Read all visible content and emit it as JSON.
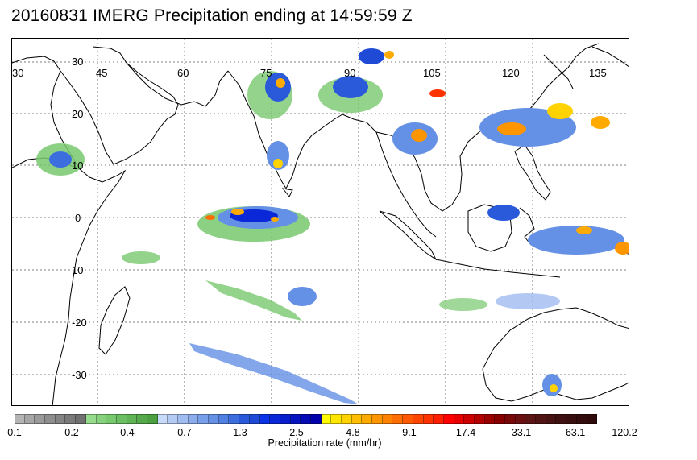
{
  "title": "20160831 IMERG Precipitation ending at 14:59:59 Z",
  "longitude_labels": [
    "30",
    "45",
    "60",
    "75",
    "90",
    "105",
    "120",
    "135"
  ],
  "latitude_labels": [
    "30",
    "20",
    "10",
    "0",
    "10",
    "-20",
    "-30"
  ],
  "colorbar": {
    "title": "Precipitation rate (mm/hr)",
    "ticks": [
      "0.1",
      "0.2",
      "0.4",
      "0.7",
      "1.3",
      "2.5",
      "4.8",
      "9.1",
      "17.4",
      "33.1",
      "63.1",
      "120.2"
    ],
    "colors": [
      "#b4b4b4",
      "#a6a6a6",
      "#9a9a9a",
      "#8e8e8e",
      "#848484",
      "#7a7a7a",
      "#707070",
      "#96dc8c",
      "#86d27c",
      "#78c86e",
      "#6cbe62",
      "#60b456",
      "#56aa4c",
      "#4ca042",
      "#c8dcfa",
      "#b4ccf4",
      "#a0bcf0",
      "#8cacec",
      "#78a0ea",
      "#6490e6",
      "#5080e2",
      "#3c6ede",
      "#2a5ada",
      "#1e4ad6",
      "#0a32e6",
      "#0a28d8",
      "#081ecc",
      "#0614c0",
      "#040ab4",
      "#0000aa",
      "#fffa00",
      "#ffe600",
      "#ffd200",
      "#ffbe00",
      "#ffaa00",
      "#ff9600",
      "#ff8200",
      "#ff6e00",
      "#ff5a00",
      "#ff4600",
      "#ff3200",
      "#ff1e00",
      "#ff0000",
      "#e60000",
      "#cc0000",
      "#b30000",
      "#9a0000",
      "#860000",
      "#780808",
      "#6a1010",
      "#5c1414",
      "#501414",
      "#461212",
      "#3e1010",
      "#380e0e",
      "#330c0c",
      "#2e0a0a"
    ]
  }
}
